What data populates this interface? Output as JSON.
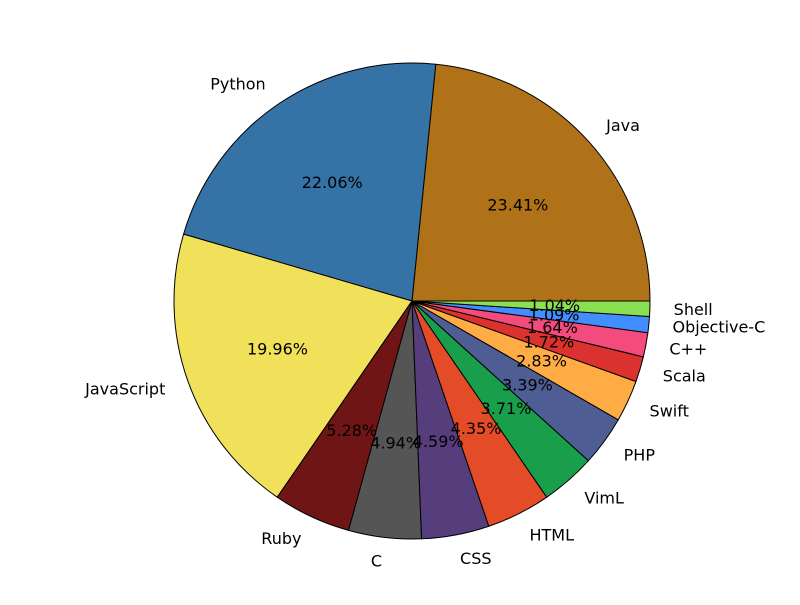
{
  "chart_data": {
    "type": "pie",
    "title": "",
    "slices": [
      {
        "label": "Java",
        "value": 23.41,
        "pct_label": "23.41%",
        "color": "#b07219"
      },
      {
        "label": "Python",
        "value": 22.06,
        "pct_label": "22.06%",
        "color": "#3572a5"
      },
      {
        "label": "JavaScript",
        "value": 19.96,
        "pct_label": "19.96%",
        "color": "#f1e05a"
      },
      {
        "label": "Ruby",
        "value": 5.28,
        "pct_label": "5.28%",
        "color": "#701516"
      },
      {
        "label": "C",
        "value": 4.94,
        "pct_label": "4.94%",
        "color": "#555555"
      },
      {
        "label": "CSS",
        "value": 4.59,
        "pct_label": "4.59%",
        "color": "#563d7c"
      },
      {
        "label": "HTML",
        "value": 4.35,
        "pct_label": "4.35%",
        "color": "#e34c26"
      },
      {
        "label": "VimL",
        "value": 3.71,
        "pct_label": "3.71%",
        "color": "#199f4b"
      },
      {
        "label": "PHP",
        "value": 3.39,
        "pct_label": "3.39%",
        "color": "#4f5d95"
      },
      {
        "label": "Swift",
        "value": 2.83,
        "pct_label": "2.83%",
        "color": "#ffac45"
      },
      {
        "label": "Scala",
        "value": 1.72,
        "pct_label": "1.72%",
        "color": "#dc322f"
      },
      {
        "label": "C++",
        "value": 1.64,
        "pct_label": "1.64%",
        "color": "#f34b7d"
      },
      {
        "label": "Objective-C",
        "value": 1.09,
        "pct_label": "1.09%",
        "color": "#438eff"
      },
      {
        "label": "Shell",
        "value": 1.04,
        "pct_label": "1.04%",
        "color": "#89e051"
      }
    ],
    "start_angle": "3 o'clock",
    "direction": "counterclockwise",
    "edge_color": "#000000"
  }
}
